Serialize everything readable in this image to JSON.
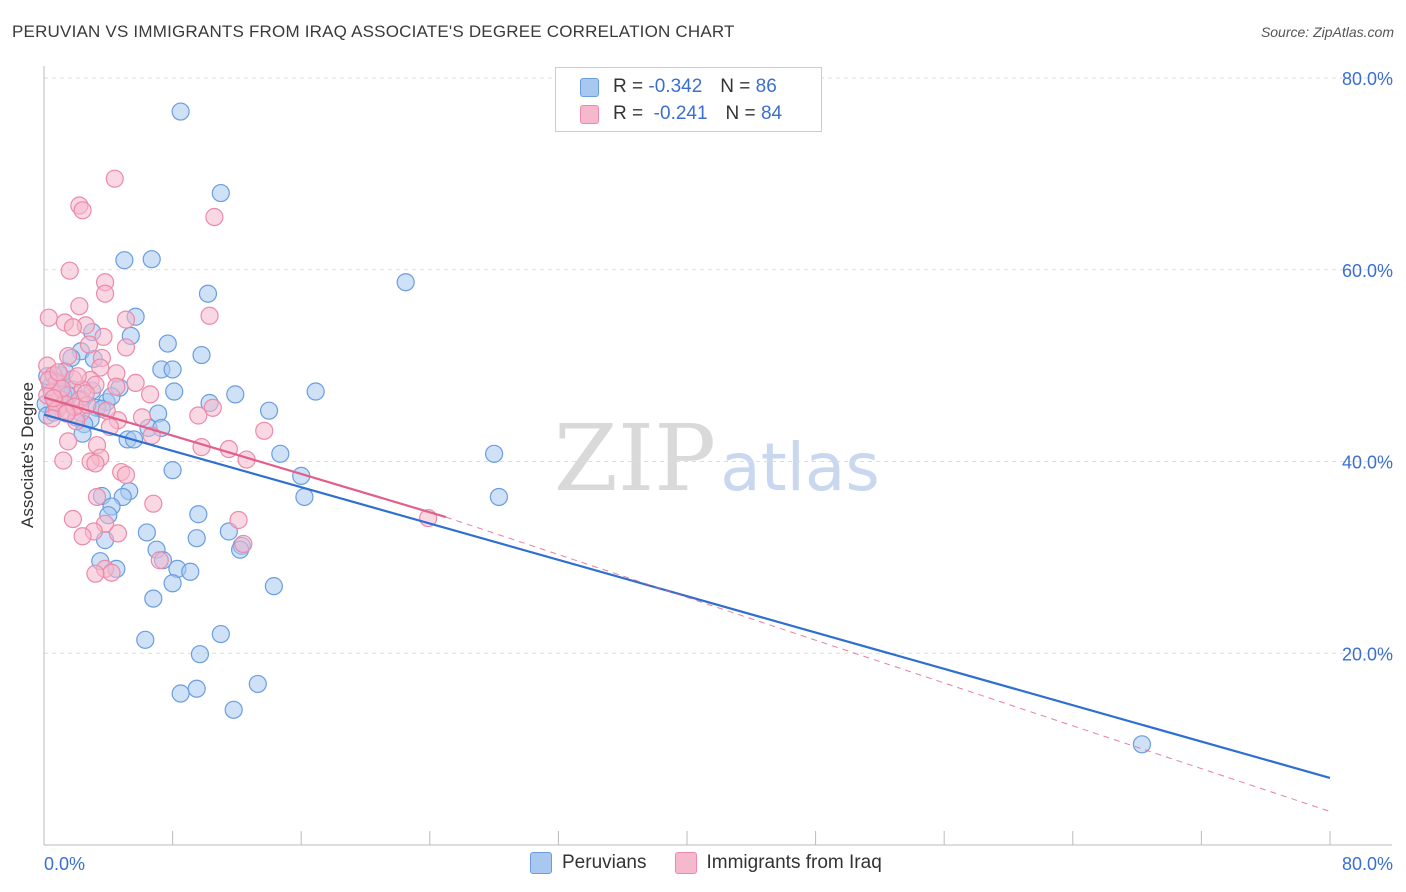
{
  "title": "PERUVIAN VS IMMIGRANTS FROM IRAQ ASSOCIATE'S DEGREE CORRELATION CHART",
  "source": "Source: ZipAtlas.com",
  "watermark": {
    "zip": "ZIP",
    "atlas": "atlas"
  },
  "legend": {
    "rows": [
      {
        "r_label": "R =",
        "r_value": "-0.342",
        "n_label": "N =",
        "n_value": "86"
      },
      {
        "r_label": "R =",
        "r_value": "-0.241",
        "n_label": "N =",
        "n_value": "84"
      }
    ]
  },
  "bottom_legend": [
    "Peruvians",
    "Immigrants from Iraq"
  ],
  "colors": {
    "blue_fill": "#a8c8f0",
    "blue_stroke": "#6a9de0",
    "blue_line": "#2e6fd0",
    "pink_fill": "#f6b8cc",
    "pink_stroke": "#ec8aa8",
    "pink_line": "#e0608a",
    "tick_label": "#3a6fd0",
    "grid": "#dddddd"
  },
  "chart_data": {
    "type": "scatter",
    "title": "PERUVIAN VS IMMIGRANTS FROM IRAQ ASSOCIATE'S DEGREE CORRELATION CHART",
    "xlabel": "",
    "ylabel": "Associate's Degree",
    "xlim": [
      0,
      80
    ],
    "ylim": [
      0,
      80
    ],
    "x_tick_labels": [
      "0.0%",
      "80.0%"
    ],
    "y_tick_labels": [
      "20.0%",
      "40.0%",
      "60.0%",
      "80.0%"
    ],
    "y_ticks": [
      20,
      40,
      60,
      80
    ],
    "grid": true,
    "legend_position": "top-center",
    "series": [
      {
        "name": "Peruvians",
        "r": -0.342,
        "n": 86,
        "trend": {
          "x": [
            0,
            80
          ],
          "y": [
            44.9,
            7.0
          ],
          "style": "solid"
        },
        "points": [
          [
            8.5,
            76.5
          ],
          [
            11,
            68
          ],
          [
            5,
            61
          ],
          [
            6.7,
            61.1
          ],
          [
            22.5,
            58.7
          ],
          [
            10.2,
            57.5
          ],
          [
            5.7,
            55.1
          ],
          [
            3,
            53.5
          ],
          [
            5.4,
            53.1
          ],
          [
            7.7,
            52.3
          ],
          [
            9.8,
            51.1
          ],
          [
            2.3,
            51.5
          ],
          [
            1.7,
            50.8
          ],
          [
            7.3,
            49.6
          ],
          [
            8,
            49.6
          ],
          [
            1,
            49
          ],
          [
            0.8,
            48.4
          ],
          [
            1.1,
            48
          ],
          [
            0.4,
            47.8
          ],
          [
            4.7,
            47.7
          ],
          [
            1.8,
            47.5
          ],
          [
            3,
            47.4
          ],
          [
            11.9,
            47
          ],
          [
            8.1,
            47.3
          ],
          [
            16.9,
            47.3
          ],
          [
            1.2,
            47
          ],
          [
            2.3,
            46.5
          ],
          [
            0.9,
            46.5
          ],
          [
            3.9,
            46.2
          ],
          [
            10.3,
            46.1
          ],
          [
            0.1,
            46
          ],
          [
            1,
            45.8
          ],
          [
            3.3,
            45.6
          ],
          [
            3.6,
            45.5
          ],
          [
            14,
            45.3
          ],
          [
            7.1,
            45
          ],
          [
            0.2,
            44.8
          ],
          [
            2.9,
            44.4
          ],
          [
            6.5,
            43.5
          ],
          [
            7.3,
            43.5
          ],
          [
            2.5,
            43.9
          ],
          [
            2.4,
            42.9
          ],
          [
            5.2,
            42.3
          ],
          [
            5.6,
            42.3
          ],
          [
            14.7,
            40.8
          ],
          [
            28,
            40.8
          ],
          [
            8,
            39.1
          ],
          [
            16,
            38.5
          ],
          [
            5.3,
            36.9
          ],
          [
            3.6,
            36.4
          ],
          [
            4.9,
            36.3
          ],
          [
            16.2,
            36.3
          ],
          [
            28.3,
            36.3
          ],
          [
            4.2,
            35.3
          ],
          [
            9.6,
            34.5
          ],
          [
            4,
            34.4
          ],
          [
            6.4,
            32.6
          ],
          [
            11.5,
            32.7
          ],
          [
            9.5,
            32
          ],
          [
            3.8,
            31.8
          ],
          [
            12.3,
            31.2
          ],
          [
            12.2,
            30.8
          ],
          [
            7,
            30.8
          ],
          [
            7.4,
            29.7
          ],
          [
            3.5,
            29.6
          ],
          [
            4.5,
            28.8
          ],
          [
            8.3,
            28.8
          ],
          [
            9.1,
            28.5
          ],
          [
            8,
            27.3
          ],
          [
            14.3,
            27
          ],
          [
            6.8,
            25.7
          ],
          [
            11,
            22
          ],
          [
            6.3,
            21.4
          ],
          [
            9.7,
            19.9
          ],
          [
            13.3,
            16.8
          ],
          [
            9.5,
            16.3
          ],
          [
            8.5,
            15.8
          ],
          [
            11.8,
            14.1
          ],
          [
            68.3,
            10.5
          ],
          [
            0.2,
            48.9
          ],
          [
            1.5,
            46.9
          ],
          [
            0.6,
            45.1
          ],
          [
            2,
            44.6
          ],
          [
            4.2,
            46.8
          ],
          [
            1.3,
            49.4
          ],
          [
            3.1,
            50.7
          ]
        ]
      },
      {
        "name": "Immigrants from Iraq",
        "r": -0.241,
        "n": 84,
        "trend": {
          "x": [
            0,
            25
          ],
          "y": [
            46.7,
            34.2
          ],
          "style": "solid",
          "extension": {
            "x": [
              25,
              80
            ],
            "y": [
              34.2,
              3.5
            ],
            "style": "dashed"
          }
        },
        "points": [
          [
            4.4,
            69.5
          ],
          [
            2.2,
            66.7
          ],
          [
            2.4,
            66.2
          ],
          [
            10.6,
            65.5
          ],
          [
            1.6,
            59.9
          ],
          [
            3.8,
            58.7
          ],
          [
            3.8,
            57.5
          ],
          [
            2.2,
            56.2
          ],
          [
            10.3,
            55.2
          ],
          [
            0.3,
            55
          ],
          [
            5.1,
            54.8
          ],
          [
            1.3,
            54.5
          ],
          [
            2.6,
            54.2
          ],
          [
            1.8,
            54
          ],
          [
            3.7,
            53
          ],
          [
            2.8,
            52.2
          ],
          [
            5.1,
            51.9
          ],
          [
            1.5,
            51
          ],
          [
            3.6,
            50.8
          ],
          [
            0.2,
            50
          ],
          [
            3.5,
            49.8
          ],
          [
            4.5,
            49.2
          ],
          [
            0.6,
            49
          ],
          [
            1.8,
            48.6
          ],
          [
            2.9,
            48.5
          ],
          [
            0.8,
            48.2
          ],
          [
            3.2,
            48
          ],
          [
            4.5,
            47.8
          ],
          [
            2.4,
            47.5
          ],
          [
            6.6,
            47
          ],
          [
            0.2,
            46.9
          ],
          [
            1,
            46.5
          ],
          [
            2.2,
            46.4
          ],
          [
            0.7,
            46.2
          ],
          [
            1.3,
            46
          ],
          [
            10.5,
            45.6
          ],
          [
            0.8,
            45.4
          ],
          [
            1.5,
            45.3
          ],
          [
            2.3,
            45.1
          ],
          [
            9.6,
            44.8
          ],
          [
            0.5,
            44.5
          ],
          [
            2,
            44.2
          ],
          [
            4.6,
            44.3
          ],
          [
            13.7,
            43.2
          ],
          [
            6.7,
            42.7
          ],
          [
            1.5,
            42.1
          ],
          [
            3.3,
            41.7
          ],
          [
            9.8,
            41.5
          ],
          [
            11.5,
            41.3
          ],
          [
            12.6,
            40.2
          ],
          [
            3.5,
            40.4
          ],
          [
            1.2,
            40.1
          ],
          [
            2.9,
            40
          ],
          [
            3.2,
            39.8
          ],
          [
            4.8,
            38.9
          ],
          [
            5.1,
            38.6
          ],
          [
            1.8,
            34
          ],
          [
            6.8,
            35.6
          ],
          [
            23.9,
            34.1
          ],
          [
            12.1,
            33.9
          ],
          [
            3.8,
            33.5
          ],
          [
            3.1,
            32.7
          ],
          [
            2.4,
            32.2
          ],
          [
            4.6,
            32.5
          ],
          [
            12.4,
            31.4
          ],
          [
            7.2,
            29.7
          ],
          [
            3.8,
            28.8
          ],
          [
            4.2,
            28.4
          ],
          [
            3.2,
            28.3
          ],
          [
            0.5,
            47.2
          ],
          [
            1.9,
            45.7
          ],
          [
            1.1,
            47.6
          ],
          [
            2.7,
            45.9
          ],
          [
            0.3,
            48.5
          ],
          [
            4.1,
            43.6
          ],
          [
            3.3,
            36.3
          ],
          [
            0.9,
            49.3
          ],
          [
            2.6,
            47.1
          ],
          [
            1.4,
            45
          ],
          [
            5.7,
            48.2
          ],
          [
            2.1,
            48.9
          ],
          [
            0.6,
            46.6
          ],
          [
            3.9,
            45.3
          ],
          [
            6.1,
            44.6
          ]
        ]
      }
    ]
  }
}
